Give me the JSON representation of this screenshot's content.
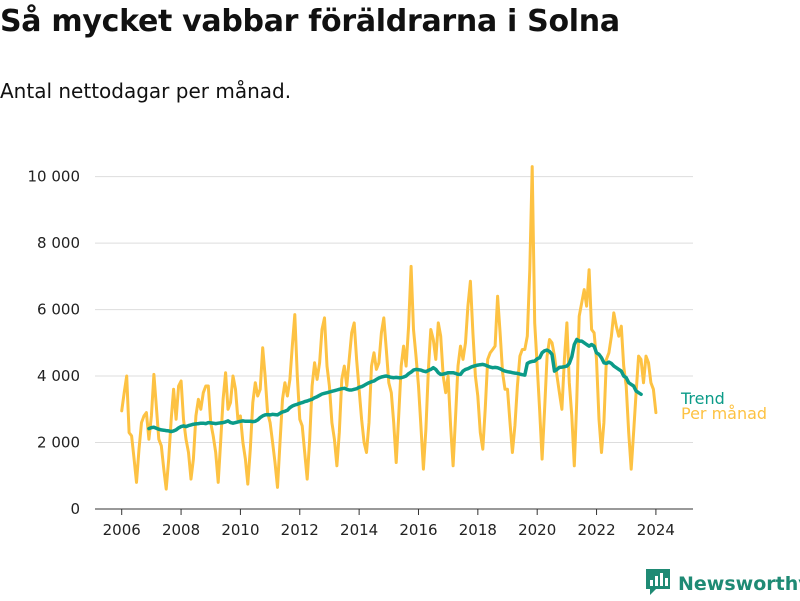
{
  "header": {
    "title": "Så mycket vabbar föräldrarna i Solna",
    "subtitle": "Antal nettodagar per månad."
  },
  "branding": {
    "name": "Newsworthy",
    "icon": "bar-chart-logo-icon"
  },
  "colors": {
    "trend": "#0b9b88",
    "monthly": "#fdc243",
    "axis": "#333333",
    "grid": "#dddddd",
    "brand": "#1f8a74"
  },
  "chart_data": {
    "type": "line",
    "title": "Så mycket vabbar föräldrarna i Solna",
    "subtitle": "Antal nettodagar per månad.",
    "xlabel": "",
    "ylabel": "",
    "x_unit": "year (decimal, monthly)",
    "xlim": [
      2005.1,
      2025.25
    ],
    "ylim": [
      0,
      10500
    ],
    "x_ticks": [
      2006,
      2008,
      2010,
      2012,
      2014,
      2016,
      2018,
      2020,
      2022,
      2024
    ],
    "x_tick_labels": [
      "2006",
      "2008",
      "2010",
      "2012",
      "2014",
      "2016",
      "2018",
      "2020",
      "2022",
      "2024"
    ],
    "y_ticks": [
      0,
      2000,
      4000,
      6000,
      8000,
      10000
    ],
    "y_tick_labels": [
      "0",
      "2 000",
      "4 000",
      "6 000",
      "8 000",
      "10 000"
    ],
    "grid": {
      "horizontal": true,
      "vertical": false
    },
    "legend": "direct labels at right end of lines",
    "series": [
      {
        "name": "Per månad",
        "x_start": 2006.0,
        "x_step": 0.08333,
        "values": [
          2950,
          3500,
          4000,
          2300,
          2200,
          1500,
          800,
          1800,
          2600,
          2800,
          2900,
          2100,
          2800,
          4050,
          3100,
          2100,
          1900,
          1200,
          600,
          1500,
          2700,
          3600,
          2700,
          3700,
          3850,
          2700,
          2100,
          1700,
          900,
          1500,
          2800,
          3300,
          3000,
          3500,
          3700,
          3700,
          2600,
          2200,
          1700,
          800,
          2000,
          3300,
          4100,
          3000,
          3200,
          4000,
          3600,
          2700,
          2800,
          2000,
          1500,
          750,
          1800,
          3200,
          3800,
          3400,
          3600,
          4850,
          4000,
          2900,
          2600,
          2000,
          1400,
          650,
          2000,
          3300,
          3800,
          3400,
          3900,
          4900,
          5850,
          4000,
          2700,
          2500,
          1700,
          900,
          2100,
          3700,
          4400,
          3900,
          4400,
          5400,
          5750,
          4300,
          3700,
          2600,
          2100,
          1300,
          2300,
          3900,
          4300,
          3700,
          4500,
          5300,
          5600,
          4500,
          3600,
          2700,
          2000,
          1700,
          2600,
          4300,
          4700,
          4200,
          4400,
          5300,
          5750,
          4800,
          3800,
          3500,
          2600,
          1400,
          2800,
          4300,
          4900,
          4300,
          5500,
          7300,
          5400,
          4600,
          3700,
          2500,
          1200,
          2400,
          4200,
          5400,
          5100,
          4500,
          5600,
          5200,
          4000,
          3500,
          4000,
          2500,
          1300,
          2800,
          4300,
          4900,
          4500,
          5000,
          6100,
          6850,
          5300,
          4000,
          3400,
          2300,
          1800,
          3000,
          4500,
          4700,
          4800,
          4900,
          6400,
          5300,
          4100,
          3600,
          3600,
          2600,
          1700,
          2500,
          3700,
          4600,
          4800,
          4800,
          5200,
          7200,
          10300,
          5600,
          4300,
          3000,
          1500,
          3000,
          4600,
          5100,
          5000,
          4600,
          4000,
          3500,
          3000,
          4500,
          5600,
          3800,
          2800,
          1300,
          3200,
          5800,
          6200,
          6600,
          6100,
          7200,
          5400,
          5300,
          4500,
          2700,
          1700,
          2600,
          4500,
          4700,
          5200,
          5900,
          5500,
          5200,
          5500,
          4300,
          3700,
          2300,
          1200,
          2300,
          3500,
          4600,
          4500,
          3800,
          4600,
          4400,
          3800,
          3600,
          2900
        ]
      },
      {
        "name": "Trend",
        "x_start": 2006.917,
        "x_step": 0.08333,
        "values": [
          2420,
          2450,
          2460,
          2430,
          2400,
          2380,
          2370,
          2360,
          2350,
          2330,
          2350,
          2380,
          2440,
          2480,
          2500,
          2480,
          2510,
          2530,
          2550,
          2560,
          2570,
          2580,
          2580,
          2570,
          2600,
          2590,
          2580,
          2570,
          2580,
          2590,
          2600,
          2620,
          2650,
          2600,
          2580,
          2600,
          2620,
          2640,
          2650,
          2640,
          2640,
          2640,
          2630,
          2640,
          2680,
          2750,
          2800,
          2830,
          2840,
          2830,
          2850,
          2840,
          2830,
          2880,
          2920,
          2940,
          2970,
          3050,
          3100,
          3130,
          3150,
          3180,
          3200,
          3230,
          3250,
          3280,
          3300,
          3350,
          3380,
          3420,
          3460,
          3480,
          3500,
          3520,
          3540,
          3560,
          3580,
          3600,
          3620,
          3630,
          3600,
          3580,
          3580,
          3600,
          3620,
          3660,
          3680,
          3720,
          3760,
          3800,
          3830,
          3850,
          3900,
          3940,
          3970,
          3990,
          4000,
          3980,
          3960,
          3950,
          3960,
          3950,
          3950,
          3970,
          4000,
          4070,
          4120,
          4180,
          4200,
          4190,
          4180,
          4150,
          4130,
          4170,
          4200,
          4250,
          4200,
          4100,
          4050,
          4060,
          4080,
          4100,
          4100,
          4100,
          4080,
          4050,
          4050,
          4150,
          4200,
          4220,
          4260,
          4290,
          4310,
          4330,
          4340,
          4350,
          4330,
          4300,
          4270,
          4250,
          4260,
          4250,
          4220,
          4180,
          4150,
          4130,
          4120,
          4100,
          4090,
          4080,
          4060,
          4040,
          4030,
          4380,
          4420,
          4440,
          4450,
          4520,
          4550,
          4700,
          4760,
          4780,
          4740,
          4650,
          4150,
          4200,
          4260,
          4270,
          4280,
          4300,
          4380,
          4580,
          4950,
          5100,
          5050,
          5050,
          5000,
          4950,
          4900,
          4950,
          4900,
          4700,
          4650,
          4550,
          4400,
          4380,
          4420,
          4380,
          4300,
          4250,
          4200,
          4150,
          4000,
          3950,
          3800,
          3750,
          3700,
          3550,
          3500,
          3450
        ]
      }
    ],
    "end_labels": [
      "Trend",
      "Per månad"
    ]
  }
}
